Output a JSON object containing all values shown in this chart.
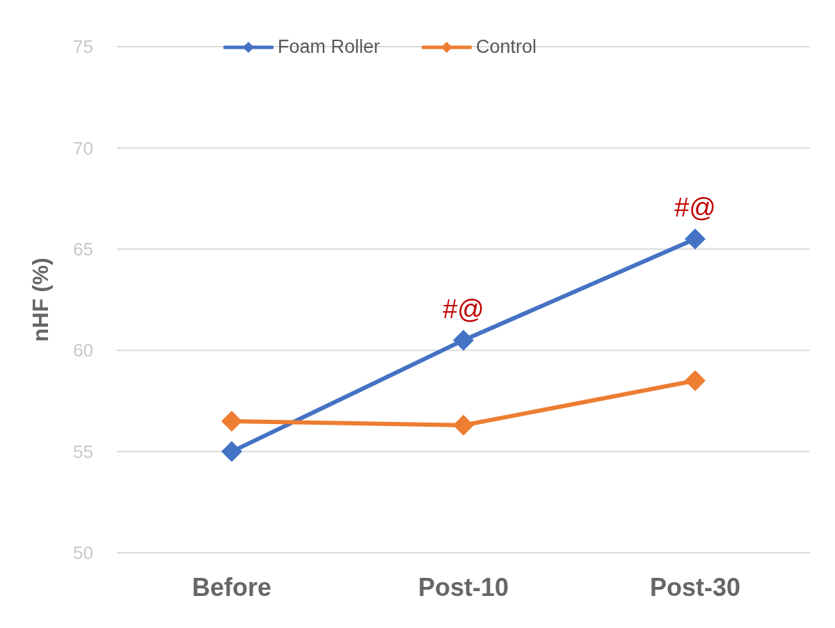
{
  "chart_data": {
    "type": "line",
    "ylabel": "nHF (%)",
    "categories": [
      "Before",
      "Post-10",
      "Post-30"
    ],
    "series": [
      {
        "name": "Foam Roller",
        "color": "#4472c4",
        "values": [
          55,
          60.5,
          65.5
        ]
      },
      {
        "name": "Control",
        "color": "#ed7d31",
        "values": [
          56.5,
          56.3,
          58.5
        ]
      }
    ],
    "ylim": [
      50,
      75
    ],
    "yticks": [
      50,
      55,
      60,
      65,
      70,
      75
    ],
    "grid": "y",
    "legend": "top",
    "marker": "diamond",
    "line_style": "solid",
    "annotations": [
      {
        "text": "#@",
        "x": "Post-10",
        "y": 60.5
      },
      {
        "text": "#@",
        "x": "Post-30",
        "y": 65.5
      }
    ]
  }
}
